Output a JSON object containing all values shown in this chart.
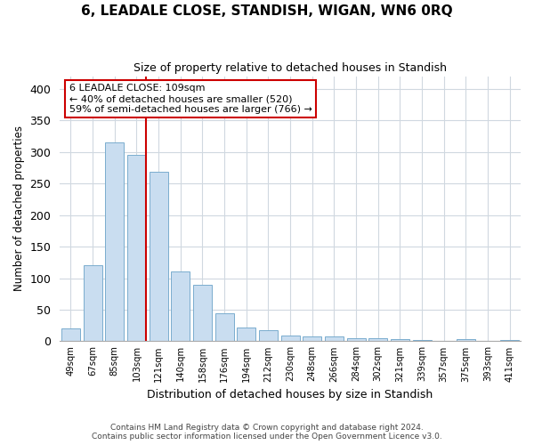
{
  "title": "6, LEADALE CLOSE, STANDISH, WIGAN, WN6 0RQ",
  "subtitle": "Size of property relative to detached houses in Standish",
  "xlabel": "Distribution of detached houses by size in Standish",
  "ylabel": "Number of detached properties",
  "categories": [
    "49sqm",
    "67sqm",
    "85sqm",
    "103sqm",
    "121sqm",
    "140sqm",
    "158sqm",
    "176sqm",
    "194sqm",
    "212sqm",
    "230sqm",
    "248sqm",
    "266sqm",
    "284sqm",
    "302sqm",
    "321sqm",
    "339sqm",
    "357sqm",
    "375sqm",
    "393sqm",
    "411sqm"
  ],
  "values": [
    20,
    120,
    315,
    295,
    268,
    110,
    90,
    44,
    22,
    18,
    9,
    8,
    8,
    5,
    5,
    3,
    2,
    1,
    4,
    1,
    2
  ],
  "bar_color": "#c9ddf0",
  "bar_edge_color": "#7aadce",
  "vline_x_index": 3,
  "vline_color": "#cc0000",
  "annotation_line1": "6 LEADALE CLOSE: 109sqm",
  "annotation_line2": "← 40% of detached houses are smaller (520)",
  "annotation_line3": "59% of semi-detached houses are larger (766) →",
  "annotation_box_color": "#ffffff",
  "annotation_box_edge": "#cc0000",
  "ylim": [
    0,
    420
  ],
  "footer_text": "Contains HM Land Registry data © Crown copyright and database right 2024.\nContains public sector information licensed under the Open Government Licence v3.0.",
  "bg_color": "#ffffff",
  "grid_color": "#d0d8e0"
}
